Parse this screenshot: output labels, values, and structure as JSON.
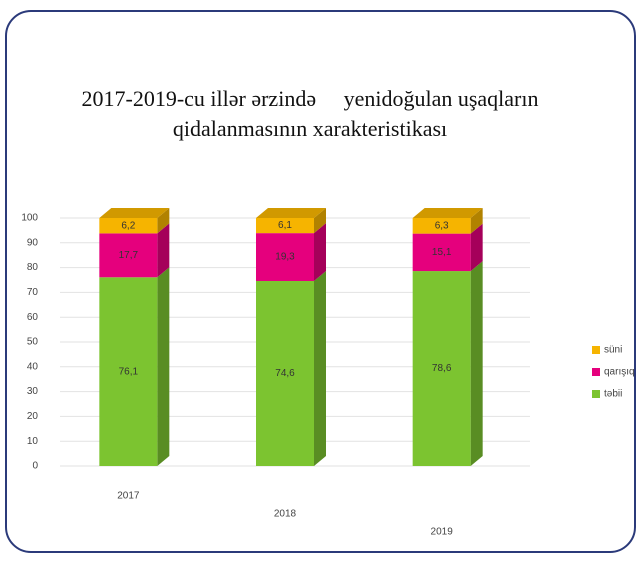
{
  "chart_data": {
    "type": "stacked_bar_3d",
    "title": "2017-2019-cu illər ərzində     yenidoğulan uşaqların qidalanmasının xarakteristikası",
    "categories": [
      "2017",
      "2018",
      "2019"
    ],
    "series": [
      {
        "name": "təbii",
        "color": "#7cc430",
        "values": [
          76.1,
          74.6,
          78.6
        ],
        "value_labels": [
          "76,1",
          "74,6",
          "78,6"
        ]
      },
      {
        "name": "qarışıq",
        "color": "#e5007d",
        "values": [
          17.7,
          19.3,
          15.1
        ],
        "value_labels": [
          "17,7",
          "19,3",
          "15,1"
        ]
      },
      {
        "name": "süni",
        "color": "#f6b400",
        "values": [
          6.2,
          6.1,
          6.3
        ],
        "value_labels": [
          "6,2",
          "6,1",
          "6,3"
        ]
      }
    ],
    "ylim": [
      0,
      100
    ],
    "yticks": [
      0,
      10,
      20,
      30,
      40,
      50,
      60,
      70,
      80,
      90,
      100
    ],
    "grid": true,
    "legend": "right"
  }
}
